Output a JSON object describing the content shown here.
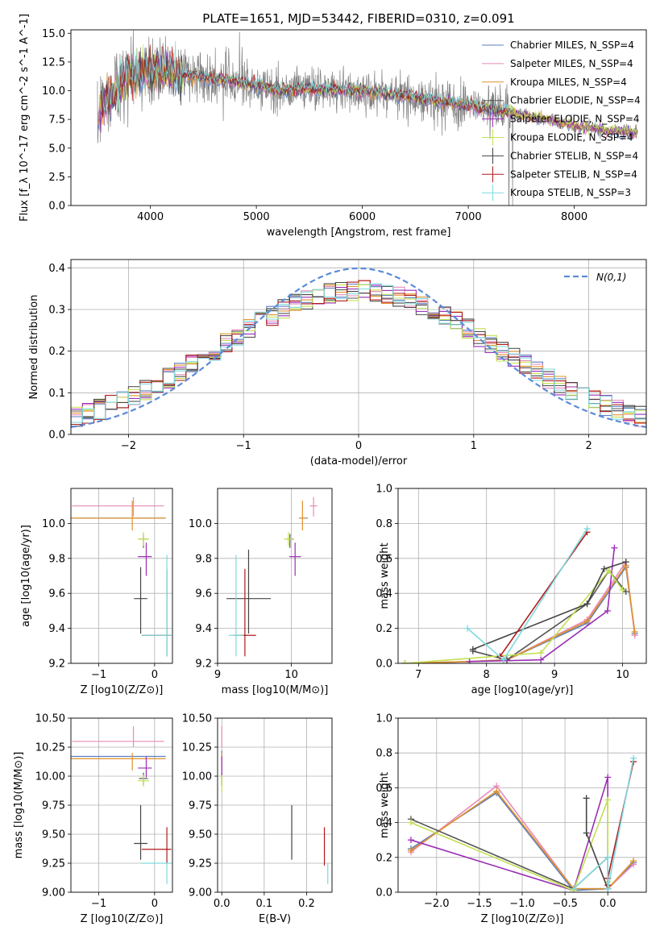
{
  "figure_title": "PLATE=1651, MJD=53442, FIBERID=0310, z=0.091",
  "colors": {
    "data_gray": "#808080",
    "gauss_blue": "#5b8bd9",
    "models": [
      "#5b7fbf",
      "#e88ab8",
      "#e0922b",
      "#555555",
      "#9b2fb5",
      "#c2e052",
      "#444444",
      "#b01a1a",
      "#7fd9de"
    ]
  },
  "models": [
    {
      "name": "Chabrier MILES",
      "nssp": "4"
    },
    {
      "name": "Salpeter MILES",
      "nssp": "4"
    },
    {
      "name": "Kroupa MILES",
      "nssp": "4"
    },
    {
      "name": "Chabrier ELODIE",
      "nssp": "4"
    },
    {
      "name": "Salpeter ELODIE",
      "nssp": "4"
    },
    {
      "name": "Kroupa ELODIE",
      "nssp": "4"
    },
    {
      "name": "Chabrier STELIB",
      "nssp": "4"
    },
    {
      "name": "Salpeter STELIB",
      "nssp": "4"
    },
    {
      "name": "Kroupa STELIB",
      "nssp": "3"
    }
  ],
  "legend_label_template": "{name}, N_SSP={n}",
  "chart_data": [
    {
      "id": "spectrum",
      "type": "line",
      "xlabel": "wavelength [Angstrom, rest frame]",
      "ylabel": "Flux [f_λ 10^-17 erg cm^-2 s^-1 A^-1]",
      "xlim": [
        3250,
        8680
      ],
      "ylim": [
        0,
        15.3
      ],
      "xticks": [
        4000,
        5000,
        6000,
        7000,
        8000
      ],
      "yticks": [
        0.0,
        2.5,
        5.0,
        7.5,
        10.0,
        12.5,
        15.0
      ],
      "grid": false,
      "legend": "top-right",
      "continuum_x": [
        3500,
        3600,
        3700,
        3800,
        3900,
        4000,
        4200,
        4400,
        4600,
        4800,
        5000,
        5200,
        5500,
        6000,
        6500,
        7000,
        7400,
        7700,
        8000,
        8300,
        8600
      ],
      "continuum_y": [
        8.5,
        9.2,
        10.2,
        11.5,
        11.5,
        11.8,
        11.6,
        11.3,
        11.0,
        10.8,
        10.5,
        10.0,
        10.1,
        10.0,
        9.4,
        8.7,
        8.1,
        7.6,
        7.0,
        6.6,
        6.3
      ]
    },
    {
      "id": "residuals",
      "type": "histogram",
      "xlabel": "(data-model)/error",
      "ylabel": "Normed distribution",
      "xlim": [
        -2.5,
        2.5
      ],
      "ylim": [
        0,
        0.42
      ],
      "xticks": [
        -2,
        -1,
        0,
        1,
        2
      ],
      "yticks": [
        0.0,
        0.1,
        0.2,
        0.3,
        0.4
      ],
      "grid": true,
      "legend": "top-right",
      "gauss_label": "N(0,1)",
      "bin_width": 0.1
    },
    {
      "id": "age_vs_Z",
      "type": "errorbar",
      "xlabel": "Z [log10(Z/Z⊙)]",
      "ylabel": "age [log10(age/yr)]",
      "xlim": [
        -1.5,
        0.32
      ],
      "ylim": [
        9.2,
        10.2
      ],
      "xticks": [
        -1,
        0
      ],
      "yticks": [
        9.2,
        9.4,
        9.6,
        9.8,
        10.0
      ],
      "grid": true,
      "points": [
        {
          "x": -0.4,
          "y": 10.03,
          "xerr": [
            1.1,
            0.6
          ],
          "yerr": [
            0.0,
            0.0
          ]
        },
        {
          "x": -0.38,
          "y": 10.1,
          "xerr": [
            1.1,
            0.55
          ],
          "yerr": [
            0.06,
            0.05
          ]
        },
        {
          "x": -0.4,
          "y": 10.03,
          "xerr": [
            1.1,
            0.6
          ],
          "yerr": [
            0.07,
            0.1
          ]
        },
        {
          "x": -0.2,
          "y": 9.91,
          "xerr": [
            0.08,
            0.08
          ],
          "yerr": [
            0.05,
            0.03
          ]
        },
        {
          "x": -0.15,
          "y": 9.81,
          "xerr": [
            0.15,
            0.1
          ],
          "yerr": [
            0.11,
            0.08
          ]
        },
        {
          "x": -0.2,
          "y": 9.91,
          "xerr": [
            0.1,
            0.1
          ],
          "yerr": [
            0.04,
            0.04
          ]
        },
        {
          "x": -0.25,
          "y": 9.57,
          "xerr": [
            0.12,
            0.12
          ],
          "yerr": [
            0.2,
            0.18
          ]
        },
        {
          "x": 0.22,
          "y": 9.36,
          "xerr": [
            0.45,
            0.08
          ],
          "yerr": [
            0.12,
            0.38
          ]
        },
        {
          "x": 0.22,
          "y": 9.36,
          "xerr": [
            0.45,
            0.08
          ],
          "yerr": [
            0.12,
            0.46
          ]
        }
      ]
    },
    {
      "id": "age_vs_mass",
      "type": "errorbar",
      "xlabel": "mass [log10(M/M⊙)]",
      "ylabel": "",
      "xlim": [
        9.0,
        10.55
      ],
      "ylim": [
        9.2,
        10.2
      ],
      "xticks": [
        9,
        10
      ],
      "yticks": [
        9.2,
        9.4,
        9.6,
        9.8,
        10.0
      ],
      "grid": true,
      "points": [
        {
          "x": 10.17,
          "y": 10.03,
          "xerr": [
            0.05,
            0.05
          ],
          "yerr": [
            0.0,
            0.0
          ]
        },
        {
          "x": 10.3,
          "y": 10.1,
          "xerr": [
            0.05,
            0.05
          ],
          "yerr": [
            0.06,
            0.05
          ]
        },
        {
          "x": 10.15,
          "y": 10.03,
          "xerr": [
            0.05,
            0.05
          ],
          "yerr": [
            0.07,
            0.1
          ]
        },
        {
          "x": 9.98,
          "y": 9.91,
          "xerr": [
            0.05,
            0.05
          ],
          "yerr": [
            0.05,
            0.03
          ]
        },
        {
          "x": 10.05,
          "y": 9.81,
          "xerr": [
            0.08,
            0.08
          ],
          "yerr": [
            0.11,
            0.08
          ]
        },
        {
          "x": 9.96,
          "y": 9.91,
          "xerr": [
            0.06,
            0.06
          ],
          "yerr": [
            0.04,
            0.04
          ]
        },
        {
          "x": 9.42,
          "y": 9.57,
          "xerr": [
            0.3,
            0.3
          ],
          "yerr": [
            0.2,
            0.28
          ]
        },
        {
          "x": 9.37,
          "y": 9.36,
          "xerr": [
            0.15,
            0.15
          ],
          "yerr": [
            0.12,
            0.38
          ]
        },
        {
          "x": 9.25,
          "y": 9.36,
          "xerr": [
            0.1,
            0.1
          ],
          "yerr": [
            0.12,
            0.46
          ]
        }
      ]
    },
    {
      "id": "weight_vs_age",
      "type": "line",
      "xlabel": "age [log10(age/yr)]",
      "ylabel": "mass weight",
      "xlim": [
        6.7,
        10.35
      ],
      "ylim": [
        0,
        1.0
      ],
      "xticks": [
        7,
        8,
        9,
        10
      ],
      "yticks": [
        0.0,
        0.2,
        0.4,
        0.6,
        0.8,
        1.0
      ],
      "grid": true,
      "series": [
        {
          "x": [
            6.8,
            7.75,
            8.3,
            9.48,
            10.05,
            10.18
          ],
          "y": [
            0.0,
            0.01,
            0.02,
            0.23,
            0.55,
            0.17
          ]
        },
        {
          "x": [
            6.8,
            7.75,
            8.3,
            9.48,
            10.05,
            10.18
          ],
          "y": [
            0.0,
            0.01,
            0.02,
            0.25,
            0.58,
            0.16
          ]
        },
        {
          "x": [
            6.8,
            7.75,
            8.3,
            9.48,
            10.05,
            10.18
          ],
          "y": [
            0.0,
            0.01,
            0.02,
            0.24,
            0.56,
            0.18
          ]
        },
        {
          "x": [
            7.8,
            8.3,
            9.48,
            9.8,
            10.05
          ],
          "y": [
            0.07,
            0.02,
            0.34,
            0.53,
            0.41
          ]
        },
        {
          "x": [
            7.75,
            8.8,
            9.78,
            9.88
          ],
          "y": [
            0.01,
            0.02,
            0.3,
            0.66
          ]
        },
        {
          "x": [
            6.8,
            8.8,
            9.8,
            10.0
          ],
          "y": [
            0.0,
            0.06,
            0.53,
            0.42
          ]
        },
        {
          "x": [
            7.8,
            9.48,
            9.73,
            10.05
          ],
          "y": [
            0.08,
            0.34,
            0.54,
            0.58
          ]
        },
        {
          "x": [
            8.2,
            9.48
          ],
          "y": [
            0.04,
            0.75
          ]
        },
        {
          "x": [
            7.72,
            8.25,
            9.48
          ],
          "y": [
            0.2,
            0.02,
            0.77
          ]
        }
      ]
    },
    {
      "id": "mass_vs_Z",
      "type": "errorbar",
      "xlabel": "Z [log10(Z/Z⊙)]",
      "ylabel": "mass [log10(M/M⊙)]",
      "xlim": [
        -1.5,
        0.32
      ],
      "ylim": [
        9.0,
        10.5
      ],
      "xticks": [
        -1,
        0
      ],
      "yticks": [
        9.0,
        9.25,
        9.5,
        9.75,
        10.0,
        10.25,
        10.5
      ],
      "grid": true,
      "points": [
        {
          "x": -0.4,
          "y": 10.17,
          "xerr": [
            1.1,
            0.6
          ],
          "yerr": [
            0.0,
            0.0
          ]
        },
        {
          "x": -0.38,
          "y": 10.3,
          "xerr": [
            1.1,
            0.55
          ],
          "yerr": [
            0.05,
            0.13
          ]
        },
        {
          "x": -0.4,
          "y": 10.15,
          "xerr": [
            1.1,
            0.6
          ],
          "yerr": [
            0.1,
            0.05
          ]
        },
        {
          "x": -0.2,
          "y": 9.98,
          "xerr": [
            0.08,
            0.08
          ],
          "yerr": [
            0.06,
            0.05
          ]
        },
        {
          "x": -0.15,
          "y": 10.07,
          "xerr": [
            0.15,
            0.1
          ],
          "yerr": [
            0.08,
            0.1
          ]
        },
        {
          "x": -0.2,
          "y": 9.96,
          "xerr": [
            0.1,
            0.1
          ],
          "yerr": [
            0.05,
            0.05
          ]
        },
        {
          "x": -0.25,
          "y": 9.42,
          "xerr": [
            0.12,
            0.12
          ],
          "yerr": [
            0.14,
            0.33
          ]
        },
        {
          "x": 0.22,
          "y": 9.37,
          "xerr": [
            0.45,
            0.08
          ],
          "yerr": [
            0.12,
            0.19
          ]
        },
        {
          "x": 0.22,
          "y": 9.25,
          "xerr": [
            0.45,
            0.08
          ],
          "yerr": [
            0.18,
            0.0
          ]
        }
      ]
    },
    {
      "id": "mass_vs_ebv",
      "type": "errorbar",
      "xlabel": "E(B-V)",
      "ylabel": "",
      "xlim": [
        -0.01,
        0.26
      ],
      "ylim": [
        9.0,
        10.5
      ],
      "xticks": [
        0.0,
        0.1,
        0.2
      ],
      "yticks": [
        9.0,
        9.25,
        9.5,
        9.75,
        10.0,
        10.25,
        10.5
      ],
      "grid": true,
      "points": [
        {
          "x": 0.0,
          "y": 10.17,
          "xerr": [
            0.0,
            0.0
          ],
          "yerr": [
            0.05,
            0.05
          ]
        },
        {
          "x": 0.0,
          "y": 10.3,
          "xerr": [
            0.0,
            0.0
          ],
          "yerr": [
            0.05,
            0.13
          ]
        },
        {
          "x": 0.0,
          "y": 10.15,
          "xerr": [
            0.0,
            0.0
          ],
          "yerr": [
            0.1,
            0.05
          ]
        },
        {
          "x": 0.0,
          "y": 9.98,
          "xerr": [
            0.0,
            0.0
          ],
          "yerr": [
            0.06,
            0.05
          ]
        },
        {
          "x": 0.0,
          "y": 10.07,
          "xerr": [
            0.0,
            0.0
          ],
          "yerr": [
            0.08,
            0.1
          ]
        },
        {
          "x": 0.0,
          "y": 9.96,
          "xerr": [
            0.0,
            0.0
          ],
          "yerr": [
            0.1,
            0.05
          ]
        },
        {
          "x": 0.165,
          "y": 9.52,
          "xerr": [
            0.0,
            0.0
          ],
          "yerr": [
            0.24,
            0.23
          ]
        },
        {
          "x": 0.242,
          "y": 9.4,
          "xerr": [
            0.0,
            0.0
          ],
          "yerr": [
            0.17,
            0.16
          ]
        },
        {
          "x": 0.25,
          "y": 9.25,
          "xerr": [
            0.0,
            0.0
          ],
          "yerr": [
            0.18,
            0.0
          ]
        }
      ]
    },
    {
      "id": "weight_vs_Z",
      "type": "line",
      "xlabel": "Z [log10(Z/Z⊙)]",
      "ylabel": "mass weight",
      "xlim": [
        -2.45,
        0.45
      ],
      "ylim": [
        0,
        1.0
      ],
      "xticks": [
        -2.0,
        -1.5,
        -1.0,
        -0.5,
        0.0
      ],
      "yticks": [
        0.0,
        0.2,
        0.4,
        0.6,
        0.8,
        1.0
      ],
      "grid": true,
      "series": [
        {
          "x": [
            -2.3,
            -1.3,
            -0.4,
            0.0,
            0.3
          ],
          "y": [
            0.25,
            0.57,
            0.01,
            0.02,
            0.17
          ]
        },
        {
          "x": [
            -2.3,
            -1.3,
            -0.4,
            0.0,
            0.3
          ],
          "y": [
            0.23,
            0.61,
            0.02,
            0.02,
            0.16
          ]
        },
        {
          "x": [
            -2.3,
            -1.3,
            -0.4,
            0.0,
            0.3
          ],
          "y": [
            0.24,
            0.58,
            0.02,
            0.02,
            0.18
          ]
        },
        {
          "x": [
            -2.3,
            -0.4,
            0.0
          ],
          "y": [
            0.42,
            0.02,
            0.2
          ]
        },
        {
          "x": [
            -2.3,
            -0.4,
            0.0,
            0.0
          ],
          "y": [
            0.3,
            0.01,
            0.66,
            0.02
          ]
        },
        {
          "x": [
            -2.3,
            -0.4,
            0.0,
            0.0
          ],
          "y": [
            0.4,
            0.01,
            0.53,
            0.06
          ]
        },
        {
          "x": [
            -0.25,
            -0.25,
            0.0,
            0.0
          ],
          "y": [
            0.54,
            0.34,
            0.02,
            0.08
          ]
        },
        {
          "x": [
            0.0,
            0.0,
            0.3
          ],
          "y": [
            0.04,
            0.08,
            0.75
          ]
        },
        {
          "x": [
            -0.4,
            0.0,
            0.0,
            0.3
          ],
          "y": [
            0.02,
            0.2,
            0.02,
            0.77
          ]
        }
      ]
    }
  ]
}
